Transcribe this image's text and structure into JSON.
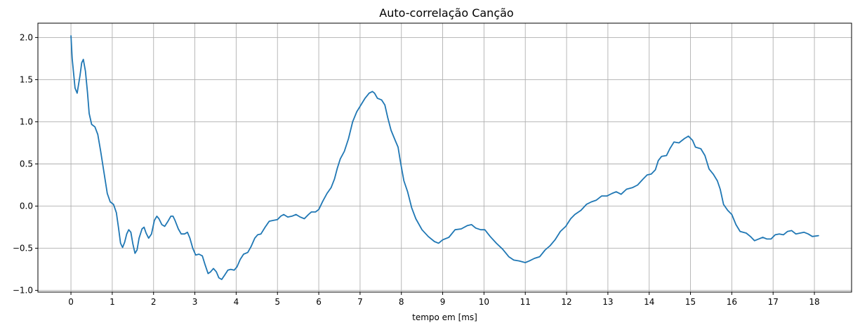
{
  "chart_data": {
    "type": "line",
    "title": "Auto-correlação Canção",
    "xlabel": "tempo em [ms]",
    "ylabel": "",
    "xlim": [
      -0.8,
      18.9
    ],
    "ylim": [
      -1.02,
      2.17
    ],
    "xticks": [
      0,
      1,
      2,
      3,
      4,
      5,
      6,
      7,
      8,
      9,
      10,
      11,
      12,
      13,
      14,
      15,
      16,
      17,
      18
    ],
    "xtick_labels": [
      "0",
      "1",
      "2",
      "3",
      "4",
      "5",
      "6",
      "7",
      "8",
      "9",
      "10",
      "11",
      "12",
      "13",
      "14",
      "15",
      "16",
      "17",
      "18"
    ],
    "yticks": [
      -1.0,
      -0.5,
      0.0,
      0.5,
      1.0,
      1.5,
      2.0
    ],
    "ytick_labels": [
      "−1.0",
      "−0.5",
      "0.0",
      "0.5",
      "1.0",
      "1.5",
      "2.0"
    ],
    "grid": true,
    "series": [
      {
        "color": "#1f77b4",
        "points": [
          [
            0.0,
            2.02
          ],
          [
            0.03,
            1.75
          ],
          [
            0.1,
            1.4
          ],
          [
            0.15,
            1.34
          ],
          [
            0.22,
            1.55
          ],
          [
            0.26,
            1.7
          ],
          [
            0.3,
            1.74
          ],
          [
            0.35,
            1.6
          ],
          [
            0.4,
            1.35
          ],
          [
            0.44,
            1.1
          ],
          [
            0.5,
            0.97
          ],
          [
            0.58,
            0.94
          ],
          [
            0.65,
            0.85
          ],
          [
            0.72,
            0.65
          ],
          [
            0.8,
            0.4
          ],
          [
            0.88,
            0.15
          ],
          [
            0.95,
            0.05
          ],
          [
            1.03,
            0.02
          ],
          [
            1.1,
            -0.08
          ],
          [
            1.15,
            -0.25
          ],
          [
            1.2,
            -0.44
          ],
          [
            1.25,
            -0.49
          ],
          [
            1.3,
            -0.43
          ],
          [
            1.35,
            -0.33
          ],
          [
            1.4,
            -0.28
          ],
          [
            1.45,
            -0.31
          ],
          [
            1.5,
            -0.45
          ],
          [
            1.55,
            -0.56
          ],
          [
            1.6,
            -0.52
          ],
          [
            1.65,
            -0.38
          ],
          [
            1.72,
            -0.27
          ],
          [
            1.77,
            -0.25
          ],
          [
            1.82,
            -0.32
          ],
          [
            1.88,
            -0.38
          ],
          [
            1.95,
            -0.33
          ],
          [
            2.02,
            -0.17
          ],
          [
            2.08,
            -0.12
          ],
          [
            2.13,
            -0.15
          ],
          [
            2.2,
            -0.22
          ],
          [
            2.27,
            -0.24
          ],
          [
            2.35,
            -0.18
          ],
          [
            2.42,
            -0.12
          ],
          [
            2.47,
            -0.12
          ],
          [
            2.52,
            -0.17
          ],
          [
            2.6,
            -0.27
          ],
          [
            2.67,
            -0.33
          ],
          [
            2.75,
            -0.33
          ],
          [
            2.82,
            -0.31
          ],
          [
            2.88,
            -0.38
          ],
          [
            2.95,
            -0.5
          ],
          [
            3.02,
            -0.58
          ],
          [
            3.1,
            -0.57
          ],
          [
            3.18,
            -0.59
          ],
          [
            3.25,
            -0.7
          ],
          [
            3.32,
            -0.8
          ],
          [
            3.38,
            -0.78
          ],
          [
            3.45,
            -0.74
          ],
          [
            3.52,
            -0.78
          ],
          [
            3.58,
            -0.85
          ],
          [
            3.65,
            -0.87
          ],
          [
            3.72,
            -0.82
          ],
          [
            3.8,
            -0.76
          ],
          [
            3.87,
            -0.75
          ],
          [
            3.95,
            -0.76
          ],
          [
            4.02,
            -0.72
          ],
          [
            4.1,
            -0.63
          ],
          [
            4.18,
            -0.57
          ],
          [
            4.28,
            -0.55
          ],
          [
            4.36,
            -0.48
          ],
          [
            4.45,
            -0.38
          ],
          [
            4.52,
            -0.34
          ],
          [
            4.6,
            -0.33
          ],
          [
            4.7,
            -0.25
          ],
          [
            4.8,
            -0.18
          ],
          [
            4.9,
            -0.17
          ],
          [
            5.0,
            -0.16
          ],
          [
            5.08,
            -0.12
          ],
          [
            5.15,
            -0.1
          ],
          [
            5.25,
            -0.13
          ],
          [
            5.35,
            -0.12
          ],
          [
            5.45,
            -0.1
          ],
          [
            5.55,
            -0.13
          ],
          [
            5.65,
            -0.15
          ],
          [
            5.75,
            -0.1
          ],
          [
            5.82,
            -0.07
          ],
          [
            5.92,
            -0.07
          ],
          [
            6.0,
            -0.04
          ],
          [
            6.1,
            0.06
          ],
          [
            6.2,
            0.15
          ],
          [
            6.3,
            0.22
          ],
          [
            6.38,
            0.32
          ],
          [
            6.45,
            0.45
          ],
          [
            6.52,
            0.56
          ],
          [
            6.62,
            0.65
          ],
          [
            6.72,
            0.8
          ],
          [
            6.82,
            1.0
          ],
          [
            6.92,
            1.12
          ],
          [
            7.02,
            1.2
          ],
          [
            7.12,
            1.28
          ],
          [
            7.22,
            1.34
          ],
          [
            7.3,
            1.36
          ],
          [
            7.35,
            1.34
          ],
          [
            7.42,
            1.28
          ],
          [
            7.52,
            1.26
          ],
          [
            7.6,
            1.2
          ],
          [
            7.67,
            1.05
          ],
          [
            7.75,
            0.9
          ],
          [
            7.85,
            0.78
          ],
          [
            7.92,
            0.7
          ],
          [
            7.98,
            0.52
          ],
          [
            8.06,
            0.3
          ],
          [
            8.15,
            0.17
          ],
          [
            8.25,
            -0.02
          ],
          [
            8.35,
            -0.15
          ],
          [
            8.5,
            -0.28
          ],
          [
            8.65,
            -0.36
          ],
          [
            8.8,
            -0.42
          ],
          [
            8.9,
            -0.44
          ],
          [
            9.0,
            -0.4
          ],
          [
            9.15,
            -0.37
          ],
          [
            9.3,
            -0.28
          ],
          [
            9.45,
            -0.27
          ],
          [
            9.6,
            -0.23
          ],
          [
            9.7,
            -0.22
          ],
          [
            9.8,
            -0.26
          ],
          [
            9.92,
            -0.28
          ],
          [
            10.02,
            -0.28
          ],
          [
            10.15,
            -0.36
          ],
          [
            10.3,
            -0.44
          ],
          [
            10.45,
            -0.51
          ],
          [
            10.6,
            -0.6
          ],
          [
            10.72,
            -0.64
          ],
          [
            10.85,
            -0.65
          ],
          [
            11.0,
            -0.67
          ],
          [
            11.1,
            -0.65
          ],
          [
            11.22,
            -0.62
          ],
          [
            11.35,
            -0.6
          ],
          [
            11.48,
            -0.52
          ],
          [
            11.6,
            -0.47
          ],
          [
            11.72,
            -0.4
          ],
          [
            11.85,
            -0.3
          ],
          [
            11.98,
            -0.24
          ],
          [
            12.1,
            -0.15
          ],
          [
            12.2,
            -0.1
          ],
          [
            12.35,
            -0.05
          ],
          [
            12.48,
            0.02
          ],
          [
            12.6,
            0.05
          ],
          [
            12.72,
            0.07
          ],
          [
            12.85,
            0.12
          ],
          [
            12.98,
            0.12
          ],
          [
            13.1,
            0.15
          ],
          [
            13.2,
            0.17
          ],
          [
            13.32,
            0.14
          ],
          [
            13.45,
            0.2
          ],
          [
            13.6,
            0.22
          ],
          [
            13.72,
            0.25
          ],
          [
            13.85,
            0.32
          ],
          [
            13.95,
            0.37
          ],
          [
            14.05,
            0.38
          ],
          [
            14.15,
            0.43
          ],
          [
            14.22,
            0.54
          ],
          [
            14.3,
            0.59
          ],
          [
            14.42,
            0.6
          ],
          [
            14.5,
            0.68
          ],
          [
            14.6,
            0.76
          ],
          [
            14.72,
            0.75
          ],
          [
            14.85,
            0.8
          ],
          [
            14.95,
            0.83
          ],
          [
            15.05,
            0.78
          ],
          [
            15.12,
            0.7
          ],
          [
            15.25,
            0.68
          ],
          [
            15.35,
            0.6
          ],
          [
            15.45,
            0.44
          ],
          [
            15.55,
            0.38
          ],
          [
            15.65,
            0.3
          ],
          [
            15.72,
            0.2
          ],
          [
            15.8,
            0.02
          ],
          [
            15.9,
            -0.05
          ],
          [
            16.0,
            -0.1
          ],
          [
            16.1,
            -0.22
          ],
          [
            16.2,
            -0.3
          ],
          [
            16.35,
            -0.32
          ],
          [
            16.45,
            -0.36
          ],
          [
            16.55,
            -0.41
          ],
          [
            16.65,
            -0.39
          ],
          [
            16.75,
            -0.37
          ],
          [
            16.85,
            -0.39
          ],
          [
            16.95,
            -0.39
          ],
          [
            17.05,
            -0.34
          ],
          [
            17.15,
            -0.33
          ],
          [
            17.25,
            -0.34
          ],
          [
            17.35,
            -0.3
          ],
          [
            17.45,
            -0.29
          ],
          [
            17.55,
            -0.33
          ],
          [
            17.65,
            -0.32
          ],
          [
            17.75,
            -0.31
          ],
          [
            17.85,
            -0.33
          ],
          [
            17.95,
            -0.36
          ],
          [
            18.1,
            -0.35
          ]
        ]
      }
    ]
  }
}
